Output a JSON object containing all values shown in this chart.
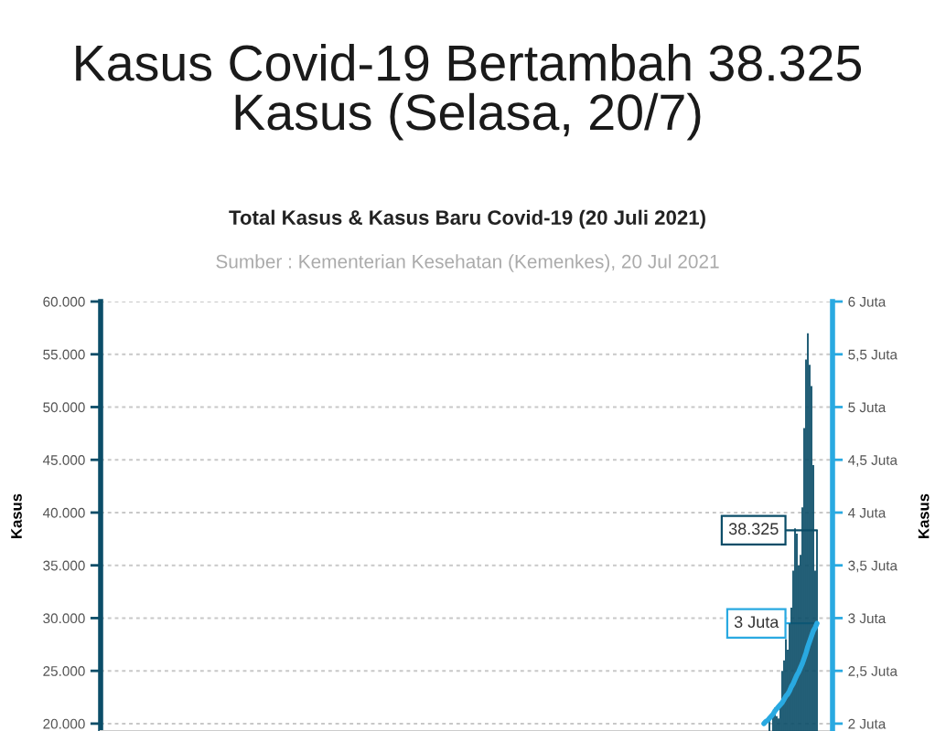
{
  "chart_data": {
    "type": "bar",
    "title": "Kasus Covid-19 Bertambah 38.325 Kasus (Selasa, 20/7)",
    "subtitle": "Total Kasus & Kasus Baru Covid-19 (20 Juli 2021)",
    "annotations": [
      "Sumber : Kementerian Kesehatan (Kemenkes), 20 Jul 2021"
    ],
    "ylabel": "Kasus",
    "y2label": "Kasus",
    "categories": [
      null,
      null,
      null,
      null,
      null,
      null,
      null,
      null,
      null,
      null,
      null,
      null,
      null,
      null,
      null,
      null,
      null,
      null,
      null,
      null,
      null,
      null,
      null,
      null,
      null,
      null,
      null,
      null,
      null,
      null,
      null,
      null,
      null,
      null,
      null,
      null,
      null,
      null,
      null,
      null,
      null,
      null,
      null,
      null,
      null,
      null,
      null,
      null,
      null,
      null,
      null,
      null,
      null,
      null,
      null,
      null,
      null,
      null,
      null,
      null,
      null,
      null,
      null,
      null,
      null,
      null,
      null,
      null,
      null,
      null,
      null,
      null,
      null,
      null,
      null,
      null,
      null,
      null,
      null,
      null,
      null,
      null,
      null,
      null,
      null,
      null,
      null,
      null,
      null,
      null,
      null,
      null,
      null,
      null,
      null,
      null,
      null,
      null,
      null,
      null,
      null,
      null,
      null,
      null,
      null,
      null,
      null,
      null,
      null,
      null,
      null,
      null,
      null,
      null,
      null,
      null,
      null,
      null,
      null,
      null,
      null,
      null,
      null,
      null,
      null,
      null,
      null,
      null,
      null,
      null,
      null,
      null,
      null,
      null,
      null,
      null,
      null,
      null,
      null,
      null,
      null,
      null,
      null,
      null,
      null,
      null,
      null,
      null,
      null,
      null,
      null,
      null,
      null,
      null,
      null,
      null,
      null,
      null,
      null,
      null,
      null,
      null,
      null,
      null,
      null,
      null,
      null,
      null,
      null,
      null,
      null,
      null,
      null,
      null,
      null,
      null,
      null,
      null,
      null,
      null,
      null,
      null,
      null,
      null,
      null,
      null,
      null,
      null,
      null,
      null,
      null,
      null,
      null,
      null,
      null,
      null,
      null,
      null,
      null,
      null,
      null,
      null,
      null,
      null,
      null,
      null,
      null,
      null,
      null,
      null,
      null,
      null,
      null,
      null,
      null,
      null,
      null,
      null,
      null,
      null,
      null,
      null,
      null,
      null,
      null,
      null,
      null,
      null,
      null,
      null,
      null,
      null,
      null,
      null,
      null,
      null,
      null,
      null,
      null,
      null,
      null,
      null,
      null,
      null,
      null,
      null,
      null,
      null,
      null,
      null,
      null,
      null,
      null,
      null,
      null,
      null,
      null,
      null,
      null,
      null,
      null,
      null,
      null,
      null,
      null,
      null,
      null,
      null,
      null,
      null,
      null,
      null,
      null,
      null,
      null,
      null,
      null,
      null,
      null,
      null,
      null,
      null,
      null,
      null,
      null,
      null,
      null,
      null,
      null,
      null,
      null,
      null,
      null,
      null,
      null,
      null,
      null,
      null,
      null,
      null,
      null,
      null,
      null,
      null,
      null,
      null,
      null,
      null,
      null,
      null,
      null,
      null,
      null,
      null,
      null,
      null,
      null,
      null,
      null,
      null,
      null,
      null,
      null,
      null,
      null,
      null,
      null,
      null,
      null,
      null,
      null,
      null,
      null,
      null,
      null,
      null,
      null,
      null,
      null,
      null,
      null,
      null,
      null,
      null,
      null,
      null,
      null,
      null,
      null,
      null,
      null,
      null,
      null,
      null,
      null,
      null,
      null,
      null,
      null,
      null,
      null,
      null,
      null,
      null,
      null,
      null,
      null,
      null,
      null,
      null,
      null,
      null,
      null,
      null,
      null,
      null,
      null,
      null,
      null,
      null,
      null,
      null,
      null,
      null,
      null,
      null,
      null,
      null,
      null,
      null,
      null,
      null,
      null,
      null,
      null,
      null,
      null,
      null,
      null,
      null
    ],
    "ylim": [
      19300,
      60000
    ],
    "yticks": [
      {
        "value": 20000,
        "label": "20.000"
      },
      {
        "value": 25000,
        "label": "25.000"
      },
      {
        "value": 30000,
        "label": "30.000"
      },
      {
        "value": 35000,
        "label": "35.000"
      },
      {
        "value": 40000,
        "label": "40.000"
      },
      {
        "value": 45000,
        "label": "45.000"
      },
      {
        "value": 50000,
        "label": "50.000"
      },
      {
        "value": 55000,
        "label": "55.000"
      },
      {
        "value": 60000,
        "label": "60.000"
      }
    ],
    "y2lim": [
      1.93,
      6
    ],
    "y2ticks": [
      {
        "value": 2,
        "label": "2 Juta"
      },
      {
        "value": 2.5,
        "label": "2,5 Juta"
      },
      {
        "value": 3,
        "label": "3 Juta"
      },
      {
        "value": 3.5,
        "label": "3,5 Juta"
      },
      {
        "value": 4,
        "label": "4 Juta"
      },
      {
        "value": 4.5,
        "label": "4,5 Juta"
      },
      {
        "value": 5,
        "label": "5 Juta"
      },
      {
        "value": 5.5,
        "label": "5,5 Juta"
      },
      {
        "value": 6,
        "label": "6 Juta"
      }
    ],
    "grid": "y",
    "series": [
      {
        "color": "#0b4d68",
        "values": [
          null,
          null,
          null,
          null,
          null,
          null,
          null,
          null,
          null,
          null,
          null,
          null,
          null,
          null,
          null,
          null,
          null,
          null,
          null,
          null,
          null,
          null,
          null,
          null,
          null,
          null,
          null,
          null,
          null,
          null,
          null,
          null,
          null,
          null,
          null,
          null,
          null,
          null,
          null,
          null,
          null,
          null,
          null,
          null,
          null,
          null,
          null,
          null,
          null,
          null,
          null,
          null,
          null,
          null,
          null,
          null,
          null,
          null,
          null,
          null,
          null,
          null,
          null,
          null,
          null,
          null,
          null,
          null,
          null,
          null,
          null,
          null,
          null,
          null,
          null,
          null,
          null,
          null,
          null,
          null,
          null,
          null,
          null,
          null,
          null,
          null,
          null,
          null,
          null,
          null,
          null,
          null,
          null,
          null,
          null,
          null,
          null,
          null,
          null,
          null,
          null,
          null,
          null,
          null,
          null,
          null,
          null,
          null,
          null,
          null,
          null,
          null,
          null,
          null,
          null,
          null,
          null,
          null,
          null,
          null,
          null,
          null,
          null,
          null,
          null,
          null,
          null,
          null,
          null,
          null,
          null,
          null,
          null,
          null,
          null,
          null,
          null,
          null,
          null,
          null,
          null,
          null,
          null,
          null,
          null,
          null,
          null,
          null,
          null,
          null,
          null,
          null,
          null,
          null,
          null,
          null,
          null,
          null,
          null,
          null,
          null,
          null,
          null,
          null,
          null,
          null,
          null,
          null,
          null,
          null,
          null,
          null,
          null,
          null,
          null,
          null,
          null,
          null,
          null,
          null,
          null,
          null,
          null,
          null,
          null,
          null,
          null,
          null,
          null,
          null,
          null,
          null,
          null,
          null,
          null,
          null,
          null,
          null,
          null,
          null,
          null,
          null,
          null,
          null,
          null,
          null,
          null,
          null,
          null,
          null,
          null,
          null,
          null,
          null,
          null,
          null,
          null,
          null,
          null,
          null,
          null,
          null,
          null,
          null,
          null,
          null,
          null,
          null,
          null,
          null,
          null,
          null,
          null,
          null,
          null,
          null,
          null,
          null,
          null,
          null,
          null,
          null,
          null,
          null,
          null,
          null,
          null,
          null,
          null,
          null,
          null,
          null,
          null,
          null,
          null,
          null,
          null,
          null,
          null,
          null,
          null,
          null,
          null,
          null,
          null,
          null,
          null,
          null,
          null,
          null,
          null,
          null,
          null,
          null,
          null,
          null,
          null,
          null,
          null,
          null,
          null,
          null,
          null,
          null,
          null,
          null,
          null,
          null,
          null,
          null,
          null,
          null,
          null,
          null,
          null,
          null,
          null,
          null,
          null,
          null,
          null,
          null,
          null,
          null,
          null,
          null,
          null,
          null,
          null,
          null,
          null,
          null,
          null,
          null,
          null,
          null,
          null,
          null,
          null,
          null,
          null,
          null,
          null,
          null,
          null,
          null,
          null,
          null,
          null,
          null,
          null,
          null,
          null,
          null,
          null,
          null,
          null,
          null,
          null,
          null,
          null,
          null,
          null,
          null,
          null,
          null,
          null,
          null,
          null,
          null,
          null,
          null,
          null,
          null,
          null,
          null,
          null,
          null,
          null,
          null,
          null,
          null,
          null,
          null,
          null,
          20500,
          null,
          21000,
          21500,
          20700,
          20500,
          22000,
          25000,
          26000,
          28000,
          27000,
          29500,
          31000,
          34500,
          38500,
          38000,
          35000,
          36000,
          40500,
          48000,
          54500,
          57000,
          54000,
          52000,
          44500,
          34500,
          38325,
          null,
          null,
          null,
          null,
          null,
          null,
          null,
          null
        ],
        "value_labels": [
          null,
          null,
          null,
          null,
          null,
          null,
          null,
          null,
          null,
          null,
          null,
          null,
          null,
          null,
          null,
          null,
          null,
          null,
          null,
          null,
          null,
          null,
          null,
          null,
          null,
          null,
          null,
          null,
          null,
          null,
          null,
          null,
          null,
          null,
          null,
          null,
          null,
          null,
          null,
          null,
          null,
          null,
          null,
          null,
          null,
          null,
          null,
          null,
          null,
          null,
          null,
          null,
          null,
          null,
          null,
          null,
          null,
          null,
          null,
          null,
          null,
          null,
          null,
          null,
          null,
          null,
          null,
          null,
          null,
          null,
          null,
          null,
          null,
          null,
          null,
          null,
          null,
          null,
          null,
          null,
          null,
          null,
          null,
          null,
          null,
          null,
          null,
          null,
          null,
          null,
          null,
          null,
          null,
          null,
          null,
          null,
          null,
          null,
          null,
          null,
          null,
          null,
          null,
          null,
          null,
          null,
          null,
          null,
          null,
          null,
          null,
          null,
          null,
          null,
          null,
          null,
          null,
          null,
          null,
          null,
          null,
          null,
          null,
          null,
          null,
          null,
          null,
          null,
          null,
          null,
          null,
          null,
          null,
          null,
          null,
          null,
          null,
          null,
          null,
          null,
          null,
          null,
          null,
          null,
          null,
          null,
          null,
          null,
          null,
          null,
          null,
          null,
          null,
          null,
          null,
          null,
          null,
          null,
          null,
          null,
          null,
          null,
          null,
          null,
          null,
          null,
          null,
          null,
          null,
          null,
          null,
          null,
          null,
          null,
          null,
          null,
          null,
          null,
          null,
          null,
          null,
          null,
          null,
          null,
          null,
          null,
          null,
          null,
          null,
          null,
          null,
          null,
          null,
          null,
          null,
          null,
          null,
          null,
          null,
          null,
          null,
          null,
          null,
          null,
          null,
          null,
          null,
          null,
          null,
          null,
          null,
          null,
          null,
          null,
          null,
          null,
          null,
          null,
          null,
          null,
          null,
          null,
          null,
          null,
          null,
          null,
          null,
          null,
          null,
          null,
          null,
          null,
          null,
          null,
          null,
          null,
          null,
          null,
          null,
          null,
          null,
          null,
          null,
          null,
          null,
          null,
          null,
          null,
          null,
          null,
          null,
          null,
          null,
          null,
          null,
          null,
          null,
          null,
          null,
          null,
          null,
          null,
          null,
          null,
          null,
          null,
          null,
          null,
          null,
          null,
          null,
          null,
          null,
          null,
          null,
          null,
          null,
          null,
          null,
          null,
          null,
          null,
          null,
          null,
          null,
          null,
          null,
          null,
          null,
          null,
          null,
          null,
          null,
          null,
          null,
          null,
          null,
          null,
          null,
          null,
          null,
          null,
          null,
          null,
          null,
          null,
          null,
          null,
          null,
          null,
          null,
          null,
          null,
          null,
          null,
          null,
          null,
          null,
          null,
          null,
          null,
          null,
          null,
          null,
          null,
          null,
          null,
          null,
          null,
          null,
          null,
          null,
          null,
          null,
          null,
          null,
          null,
          null,
          null,
          null,
          null,
          null,
          null,
          null,
          null,
          null,
          null,
          null,
          null,
          null,
          null,
          null,
          null,
          null,
          null,
          null,
          null,
          null,
          null,
          null,
          null,
          null,
          null,
          null,
          null,
          null,
          null,
          null,
          null,
          null,
          null,
          null,
          null,
          null,
          null,
          null,
          null,
          null,
          null,
          null,
          null,
          null,
          null,
          null,
          null,
          null,
          null,
          null,
          null,
          null,
          null,
          "38.325",
          null,
          null,
          null,
          null,
          null,
          null,
          null,
          null
        ]
      },
      {
        "type": "line",
        "axis": "y2",
        "color": "#29a9e1",
        "values": [
          null,
          null,
          null,
          null,
          null,
          null,
          null,
          null,
          null,
          null,
          null,
          null,
          null,
          null,
          null,
          null,
          null,
          null,
          null,
          null,
          null,
          null,
          null,
          null,
          null,
          null,
          null,
          null,
          null,
          null,
          null,
          null,
          null,
          null,
          null,
          null,
          null,
          null,
          null,
          null,
          null,
          null,
          null,
          null,
          null,
          null,
          null,
          null,
          null,
          null,
          null,
          null,
          null,
          null,
          null,
          null,
          null,
          null,
          null,
          null,
          null,
          null,
          null,
          null,
          null,
          null,
          null,
          null,
          null,
          null,
          null,
          null,
          null,
          null,
          null,
          null,
          null,
          null,
          null,
          null,
          null,
          null,
          null,
          null,
          null,
          null,
          null,
          null,
          null,
          null,
          null,
          null,
          null,
          null,
          null,
          null,
          null,
          null,
          null,
          null,
          null,
          null,
          null,
          null,
          null,
          null,
          null,
          null,
          null,
          null,
          null,
          null,
          null,
          null,
          null,
          null,
          null,
          null,
          null,
          null,
          null,
          null,
          null,
          null,
          null,
          null,
          null,
          null,
          null,
          null,
          null,
          null,
          null,
          null,
          null,
          null,
          null,
          null,
          null,
          null,
          null,
          null,
          null,
          null,
          null,
          null,
          null,
          null,
          null,
          null,
          null,
          null,
          null,
          null,
          null,
          null,
          null,
          null,
          null,
          null,
          null,
          null,
          null,
          null,
          null,
          null,
          null,
          null,
          null,
          null,
          null,
          null,
          null,
          null,
          null,
          null,
          null,
          null,
          null,
          null,
          null,
          null,
          null,
          null,
          null,
          null,
          null,
          null,
          null,
          null,
          null,
          null,
          null,
          null,
          null,
          null,
          null,
          null,
          null,
          null,
          null,
          null,
          null,
          null,
          null,
          null,
          null,
          null,
          null,
          null,
          null,
          null,
          null,
          null,
          null,
          null,
          null,
          null,
          null,
          null,
          null,
          null,
          null,
          null,
          null,
          null,
          null,
          null,
          null,
          null,
          null,
          null,
          null,
          null,
          null,
          null,
          null,
          null,
          null,
          null,
          null,
          null,
          null,
          null,
          null,
          null,
          null,
          null,
          null,
          null,
          null,
          null,
          null,
          null,
          null,
          null,
          null,
          null,
          null,
          null,
          null,
          null,
          null,
          null,
          null,
          null,
          null,
          null,
          null,
          null,
          null,
          null,
          null,
          null,
          null,
          null,
          null,
          null,
          null,
          null,
          null,
          null,
          null,
          null,
          null,
          null,
          null,
          null,
          null,
          null,
          null,
          null,
          null,
          null,
          null,
          null,
          null,
          null,
          null,
          null,
          null,
          null,
          null,
          null,
          null,
          null,
          null,
          null,
          null,
          null,
          null,
          null,
          null,
          null,
          null,
          null,
          null,
          null,
          null,
          null,
          null,
          null,
          null,
          null,
          null,
          null,
          null,
          null,
          null,
          null,
          null,
          null,
          null,
          null,
          null,
          null,
          null,
          null,
          null,
          null,
          null,
          null,
          null,
          null,
          null,
          null,
          null,
          null,
          null,
          null,
          null,
          null,
          null,
          null,
          null,
          null,
          null,
          null,
          null,
          null,
          null,
          null,
          2.0,
          2.02,
          2.03,
          2.05,
          2.07,
          2.09,
          2.12,
          2.14,
          2.16,
          2.18,
          2.2,
          2.23,
          2.26,
          2.28,
          2.31,
          2.35,
          2.38,
          2.42,
          2.46,
          2.49,
          2.53,
          2.57,
          2.62,
          2.67,
          2.73,
          2.78,
          2.83,
          2.88,
          2.91,
          2.95,
          null,
          null,
          null,
          null,
          null,
          null,
          null,
          null
        ],
        "value_labels": [
          null,
          null,
          null,
          null,
          null,
          null,
          null,
          null,
          null,
          null,
          null,
          null,
          null,
          null,
          null,
          null,
          null,
          null,
          null,
          null,
          null,
          null,
          null,
          null,
          null,
          null,
          null,
          null,
          null,
          null,
          null,
          null,
          null,
          null,
          null,
          null,
          null,
          null,
          null,
          null,
          null,
          null,
          null,
          null,
          null,
          null,
          null,
          null,
          null,
          null,
          null,
          null,
          null,
          null,
          null,
          null,
          null,
          null,
          null,
          null,
          null,
          null,
          null,
          null,
          null,
          null,
          null,
          null,
          null,
          null,
          null,
          null,
          null,
          null,
          null,
          null,
          null,
          null,
          null,
          null,
          null,
          null,
          null,
          null,
          null,
          null,
          null,
          null,
          null,
          null,
          null,
          null,
          null,
          null,
          null,
          null,
          null,
          null,
          null,
          null,
          null,
          null,
          null,
          null,
          null,
          null,
          null,
          null,
          null,
          null,
          null,
          null,
          null,
          null,
          null,
          null,
          null,
          null,
          null,
          null,
          null,
          null,
          null,
          null,
          null,
          null,
          null,
          null,
          null,
          null,
          null,
          null,
          null,
          null,
          null,
          null,
          null,
          null,
          null,
          null,
          null,
          null,
          null,
          null,
          null,
          null,
          null,
          null,
          null,
          null,
          null,
          null,
          null,
          null,
          null,
          null,
          null,
          null,
          null,
          null,
          null,
          null,
          null,
          null,
          null,
          null,
          null,
          null,
          null,
          null,
          null,
          null,
          null,
          null,
          null,
          null,
          null,
          null,
          null,
          null,
          null,
          null,
          null,
          null,
          null,
          null,
          null,
          null,
          null,
          null,
          null,
          null,
          null,
          null,
          null,
          null,
          null,
          null,
          null,
          null,
          null,
          null,
          null,
          null,
          null,
          null,
          null,
          null,
          null,
          null,
          null,
          null,
          null,
          null,
          null,
          null,
          null,
          null,
          null,
          null,
          null,
          null,
          null,
          null,
          null,
          null,
          null,
          null,
          null,
          null,
          null,
          null,
          null,
          null,
          null,
          null,
          null,
          null,
          null,
          null,
          null,
          null,
          null,
          null,
          null,
          null,
          null,
          null,
          null,
          null,
          null,
          null,
          null,
          null,
          null,
          null,
          null,
          null,
          null,
          null,
          null,
          null,
          null,
          null,
          null,
          null,
          null,
          null,
          null,
          null,
          null,
          null,
          null,
          null,
          null,
          null,
          null,
          null,
          null,
          null,
          null,
          null,
          null,
          null,
          null,
          null,
          null,
          null,
          null,
          null,
          null,
          null,
          null,
          null,
          null,
          null,
          null,
          null,
          null,
          null,
          null,
          null,
          null,
          null,
          null,
          null,
          null,
          null,
          null,
          null,
          null,
          null,
          null,
          null,
          null,
          null,
          null,
          null,
          null,
          null,
          null,
          null,
          null,
          null,
          null,
          null,
          null,
          null,
          null,
          null,
          null,
          null,
          null,
          null,
          null,
          null,
          null,
          null,
          null,
          null,
          null,
          null,
          null,
          null,
          null,
          null,
          null,
          null,
          null,
          null,
          null,
          null,
          null,
          null,
          null,
          null,
          null,
          null,
          null,
          null,
          null,
          null,
          null,
          null,
          null,
          null,
          null,
          null,
          null,
          null,
          null,
          null,
          null,
          null,
          null,
          null,
          null,
          null,
          null,
          null,
          null,
          null,
          null,
          null,
          null,
          null,
          null,
          null,
          null,
          null,
          null,
          "3 Juta",
          null,
          null,
          null,
          null,
          null,
          null,
          null,
          null
        ]
      }
    ]
  }
}
